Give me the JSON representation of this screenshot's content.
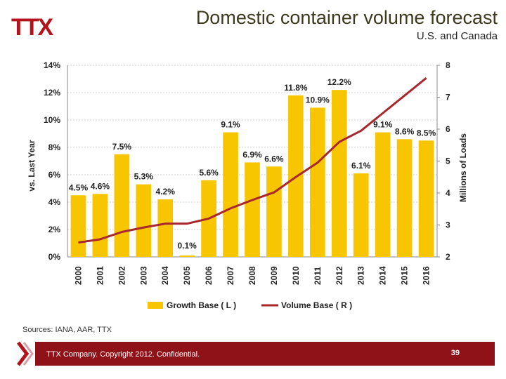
{
  "header": {
    "logo_text": "TTX",
    "title": "Domestic container volume forecast",
    "subtitle": "U.S. and Canada"
  },
  "colors": {
    "bar": "#f7c600",
    "line": "#a8262c",
    "brand": "#b3141c",
    "footer": "#8e1218"
  },
  "chart_data": {
    "type": "bar",
    "categories": [
      "2000",
      "2001",
      "2002",
      "2003",
      "2004",
      "2005",
      "2006",
      "2007",
      "2008",
      "2009",
      "2010",
      "2011",
      "2012",
      "2013",
      "2014",
      "2015",
      "2016"
    ],
    "series": [
      {
        "name": "Growth Base ( L )",
        "axis": "left",
        "type": "bar",
        "values": [
          4.5,
          4.6,
          7.5,
          5.3,
          4.2,
          0.1,
          5.6,
          9.1,
          6.9,
          6.6,
          11.8,
          10.9,
          12.2,
          6.1,
          9.1,
          8.6,
          8.5
        ],
        "labels": [
          "4.5%",
          "4.6%",
          "7.5%",
          "5.3%",
          "4.2%",
          "0.1%",
          "5.6%",
          "9.1%",
          "6.9%",
          "6.6%",
          "11.8%",
          "10.9%",
          "12.2%",
          "6.1%",
          "9.1%",
          "8.6%",
          "8.5%"
        ]
      },
      {
        "name": "Volume Base ( R )",
        "axis": "right",
        "type": "line",
        "values": [
          2.45,
          2.55,
          2.78,
          2.92,
          3.04,
          3.04,
          3.2,
          3.52,
          3.78,
          4.02,
          4.5,
          4.95,
          5.6,
          5.95,
          6.5,
          7.05,
          7.6
        ]
      }
    ],
    "y_left": {
      "label": "vs. Last Year",
      "ylim": [
        0,
        14
      ],
      "ticks": [
        0,
        2,
        4,
        6,
        8,
        10,
        12,
        14
      ],
      "tick_labels": [
        "0%",
        "2%",
        "4%",
        "6%",
        "8%",
        "10%",
        "12%",
        "14%"
      ]
    },
    "y_right": {
      "label": "Millions of Loads",
      "ylim": [
        2,
        8
      ],
      "ticks": [
        2,
        3,
        4,
        5,
        6,
        7,
        8
      ],
      "tick_labels": [
        "2",
        "3",
        "4",
        "5",
        "6",
        "7",
        "8"
      ]
    },
    "grid": true,
    "legend": "bottom"
  },
  "footer": {
    "sources": "Sources: IANA, AAR, TTX",
    "copyright": "TTX Company. Copyright 2012. Confidential.",
    "page_number": "39"
  }
}
